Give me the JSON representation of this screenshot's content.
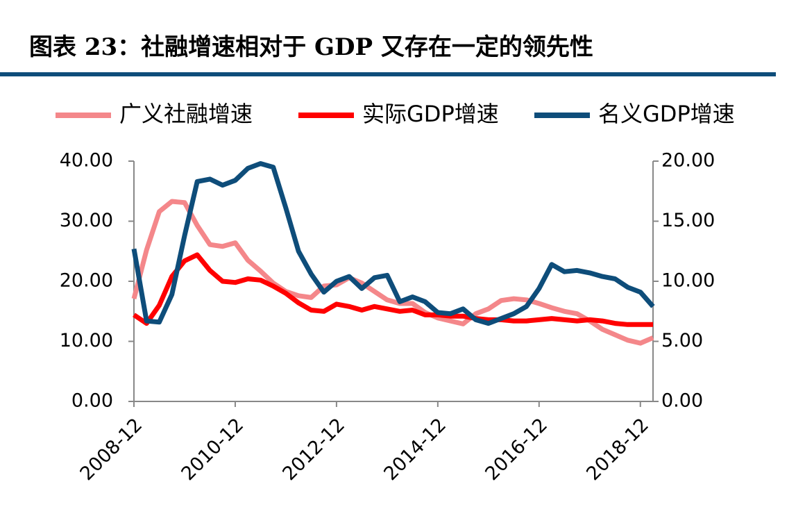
{
  "chart_data": {
    "type": "line",
    "title": "图表 23：社融增速相对于 GDP 又存在一定的领先性",
    "categories": [
      "2008-12",
      null,
      null,
      null,
      null,
      null,
      null,
      null,
      "2010-12",
      null,
      null,
      null,
      null,
      null,
      null,
      null,
      "2012-12",
      null,
      null,
      null,
      null,
      null,
      null,
      null,
      "2014-12",
      null,
      null,
      null,
      null,
      null,
      null,
      null,
      "2016-12",
      null,
      null,
      null,
      null,
      null,
      null,
      null,
      "2018-12",
      null
    ],
    "ylim": [
      0,
      40
    ],
    "yticks": [
      {
        "value": 0,
        "label": "0.00"
      },
      {
        "value": 10,
        "label": "10.00"
      },
      {
        "value": 20,
        "label": "20.00"
      },
      {
        "value": 30,
        "label": "30.00"
      },
      {
        "value": 40,
        "label": "40.00"
      }
    ],
    "y2lim": [
      0,
      20
    ],
    "y2ticks": [
      {
        "value": 0,
        "label": "0.00"
      },
      {
        "value": 5,
        "label": "5.00"
      },
      {
        "value": 10,
        "label": "10.00"
      },
      {
        "value": 15,
        "label": "15.00"
      },
      {
        "value": 20,
        "label": "20.00"
      }
    ],
    "grid": false,
    "series": [
      {
        "name": "广义社融增速",
        "color": "#f4878a",
        "values": [
          17.1,
          25.2,
          31.6,
          33.3,
          33.1,
          29.3,
          26.1,
          25.8,
          26.4,
          23.5,
          21.7,
          19.7,
          18.3,
          17.6,
          17.3,
          19.2,
          19.4,
          20.6,
          19.7,
          18.3,
          16.9,
          16.3,
          16.3,
          14.8,
          13.9,
          13.4,
          12.9,
          14.6,
          15.4,
          16.8,
          17.1,
          16.9,
          16.3,
          15.6,
          15.0,
          14.6,
          13.4,
          12.0,
          11.1,
          10.2,
          9.7,
          10.6
        ]
      },
      {
        "name": "实际GDP增速",
        "color": "#ff0000",
        "axis": "y2",
        "values": [
          7.2,
          6.5,
          8.0,
          10.4,
          11.7,
          12.2,
          10.9,
          10.0,
          9.9,
          10.2,
          10.1,
          9.6,
          9.0,
          8.2,
          7.6,
          7.5,
          8.1,
          7.9,
          7.6,
          7.9,
          7.7,
          7.5,
          7.6,
          7.2,
          7.2,
          7.1,
          7.1,
          6.9,
          6.8,
          6.8,
          6.7,
          6.7,
          6.8,
          6.9,
          6.8,
          6.7,
          6.8,
          6.7,
          6.5,
          6.4,
          6.4,
          6.4
        ]
      },
      {
        "name": "名义GDP增速",
        "color": "#0e4d7a",
        "axis": "y2",
        "values": [
          12.7,
          6.7,
          6.6,
          8.9,
          13.8,
          18.3,
          18.5,
          18.0,
          18.4,
          19.4,
          19.8,
          19.5,
          16.1,
          12.5,
          10.6,
          9.1,
          10.0,
          10.4,
          9.4,
          10.3,
          10.5,
          8.3,
          8.7,
          8.3,
          7.4,
          7.3,
          7.7,
          6.8,
          6.5,
          6.9,
          7.3,
          7.9,
          9.4,
          11.4,
          10.8,
          10.9,
          10.7,
          10.4,
          10.2,
          9.5,
          9.1,
          7.9
        ]
      }
    ]
  }
}
